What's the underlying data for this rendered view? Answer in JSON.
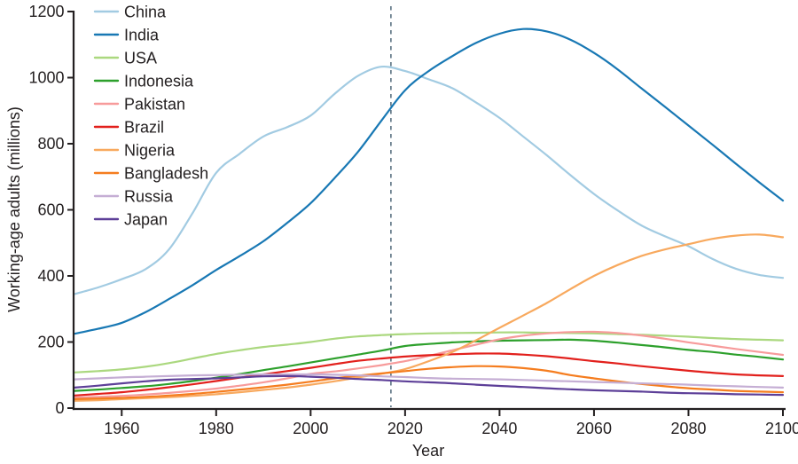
{
  "figure": {
    "background_color": "#ffffff",
    "axis_color": "#231f20"
  },
  "chart_data": {
    "type": "line",
    "title": "",
    "xlabel": "Year",
    "ylabel": "Working-age adults (millions)",
    "xlim": [
      1950,
      2100
    ],
    "ylim": [
      0,
      1200
    ],
    "x_ticks": [
      1960,
      1980,
      2000,
      2020,
      2040,
      2060,
      2080,
      2100
    ],
    "y_ticks": [
      0,
      200,
      400,
      600,
      800,
      1000,
      1200
    ],
    "grid": false,
    "legend_position": "top-left-inside",
    "annotations": [
      {
        "type": "vline",
        "x": 2017,
        "style": "dashed",
        "color": "#5b7282"
      }
    ],
    "x": [
      1950,
      1955,
      1960,
      1965,
      1970,
      1975,
      1980,
      1985,
      1990,
      1995,
      2000,
      2005,
      2010,
      2015,
      2020,
      2025,
      2030,
      2035,
      2040,
      2045,
      2050,
      2055,
      2060,
      2065,
      2070,
      2075,
      2080,
      2085,
      2090,
      2095,
      2100
    ],
    "series": [
      {
        "name": "China",
        "color": "#a2cbe2",
        "values": [
          345,
          365,
          390,
          420,
          480,
          590,
          712,
          770,
          822,
          850,
          885,
          950,
          1005,
          1033,
          1020,
          995,
          968,
          925,
          878,
          822,
          765,
          705,
          648,
          598,
          553,
          520,
          490,
          452,
          422,
          403,
          394
        ]
      },
      {
        "name": "India",
        "color": "#1878b4",
        "values": [
          225,
          240,
          258,
          290,
          330,
          372,
          418,
          460,
          505,
          560,
          620,
          695,
          775,
          870,
          962,
          1020,
          1065,
          1105,
          1133,
          1147,
          1140,
          1115,
          1075,
          1025,
          968,
          912,
          855,
          798,
          740,
          683,
          628
        ]
      },
      {
        "name": "USA",
        "color": "#abd87f",
        "values": [
          108,
          112,
          117,
          125,
          136,
          150,
          164,
          175,
          185,
          192,
          200,
          210,
          217,
          221,
          224,
          226,
          227,
          228,
          229,
          229,
          228,
          227,
          226,
          224,
          222,
          219,
          216,
          212,
          209,
          207,
          205
        ]
      },
      {
        "name": "Indonesia",
        "color": "#2da02c",
        "values": [
          52,
          56,
          61,
          66,
          73,
          82,
          92,
          103,
          115,
          126,
          138,
          150,
          162,
          174,
          188,
          194,
          199,
          202,
          204,
          205,
          206,
          207,
          204,
          198,
          191,
          184,
          176,
          170,
          162,
          155,
          147
        ]
      },
      {
        "name": "Pakistan",
        "color": "#f79b9b",
        "values": [
          32,
          34,
          37,
          41,
          46,
          52,
          59,
          68,
          78,
          90,
          104,
          111,
          120,
          130,
          142,
          158,
          175,
          192,
          208,
          219,
          226,
          230,
          231,
          227,
          220,
          210,
          199,
          189,
          179,
          170,
          161
        ]
      },
      {
        "name": "Brazil",
        "color": "#e2201c",
        "values": [
          38,
          43,
          48,
          55,
          63,
          72,
          82,
          92,
          102,
          112,
          122,
          133,
          143,
          150,
          156,
          160,
          163,
          165,
          165,
          162,
          157,
          150,
          142,
          135,
          127,
          120,
          113,
          107,
          102,
          99,
          97
        ]
      },
      {
        "name": "Nigeria",
        "color": "#f8a95e",
        "values": [
          22,
          24,
          27,
          30,
          33,
          37,
          42,
          48,
          55,
          62,
          71,
          81,
          93,
          104,
          118,
          142,
          170,
          205,
          243,
          280,
          318,
          360,
          400,
          433,
          460,
          480,
          496,
          512,
          522,
          525,
          517
        ]
      },
      {
        "name": "Bangladesh",
        "color": "#f57d1f",
        "values": [
          27,
          29,
          31,
          34,
          38,
          43,
          49,
          56,
          63,
          71,
          80,
          90,
          98,
          105,
          112,
          119,
          124,
          127,
          126,
          121,
          113,
          100,
          90,
          81,
          73,
          66,
          60,
          56,
          52,
          50,
          48
        ]
      },
      {
        "name": "Russia",
        "color": "#c5aed4",
        "values": [
          87,
          90,
          93,
          95,
          97,
          99,
          100,
          101,
          102,
          102,
          102,
          101,
          99,
          96,
          94,
          91,
          89,
          88,
          87,
          85,
          83,
          81,
          79,
          77,
          75,
          73,
          71,
          68,
          66,
          64,
          62
        ]
      },
      {
        "name": "Japan",
        "color": "#5d3f98",
        "values": [
          62,
          68,
          75,
          81,
          86,
          88,
          90,
          93,
          96,
          97,
          95,
          92,
          88,
          85,
          81,
          78,
          75,
          71,
          67,
          64,
          60,
          57,
          54,
          52,
          50,
          47,
          45,
          44,
          42,
          41,
          40
        ]
      }
    ]
  }
}
